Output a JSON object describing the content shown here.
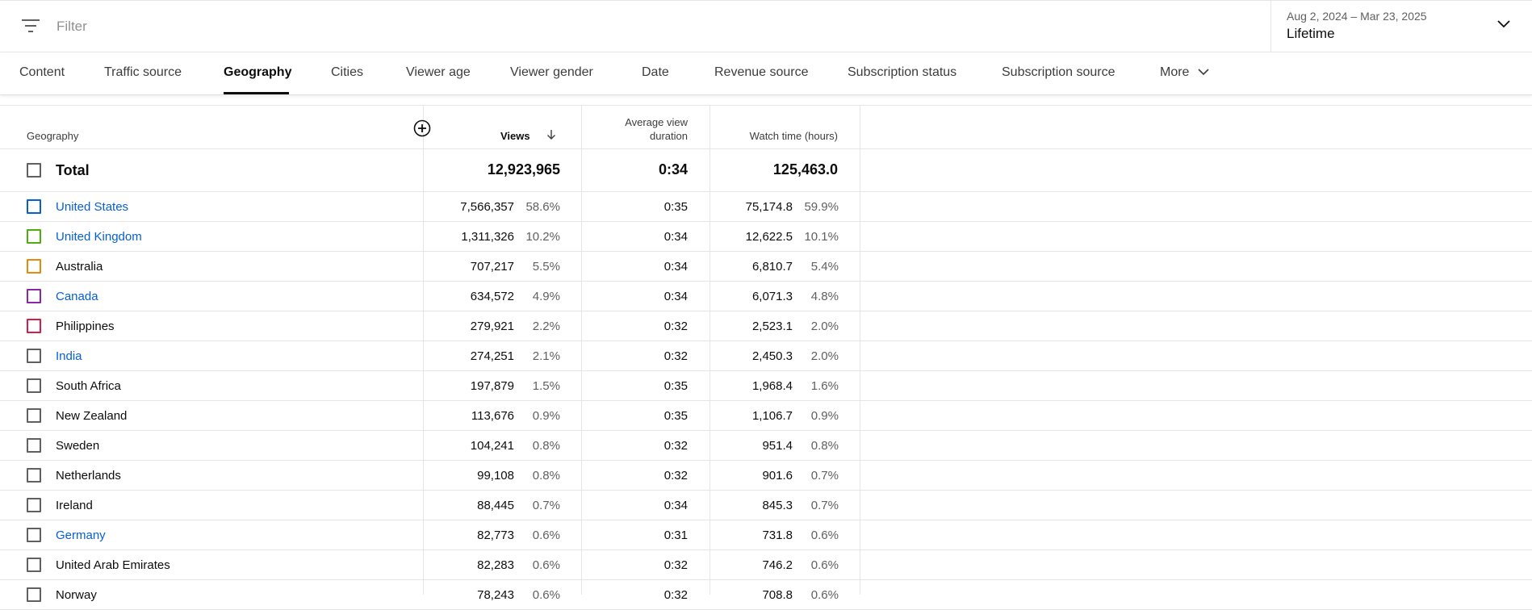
{
  "filter": {
    "placeholder": "Filter"
  },
  "date": {
    "range": "Aug 2, 2024 – Mar 23, 2025",
    "label": "Lifetime"
  },
  "tabs": [
    {
      "label": "Content"
    },
    {
      "label": "Traffic source"
    },
    {
      "label": "Geography",
      "active": true
    },
    {
      "label": "Cities"
    },
    {
      "label": "Viewer age"
    },
    {
      "label": "Viewer gender"
    },
    {
      "label": "Date"
    },
    {
      "label": "Revenue source"
    },
    {
      "label": "Subscription status"
    },
    {
      "label": "Subscription source"
    },
    {
      "label": "More"
    }
  ],
  "table": {
    "headers": {
      "geography": "Geography",
      "views": "Views",
      "avd_line1": "Average view",
      "avd_line2": "duration",
      "watch_time": "Watch time (hours)"
    },
    "total": {
      "label": "Total",
      "views": "12,923,965",
      "avd": "0:34",
      "watch_time": "125,463.0"
    },
    "rows": [
      {
        "country": "United States",
        "link": true,
        "color": "#065fd4",
        "views": "7,566,357",
        "views_pct": "58.6%",
        "avd": "0:35",
        "watch_time": "75,174.8",
        "wt_pct": "59.9%"
      },
      {
        "country": "United Kingdom",
        "link": true,
        "color": "#4caf0b",
        "views": "1,311,326",
        "views_pct": "10.2%",
        "avd": "0:34",
        "watch_time": "12,622.5",
        "wt_pct": "10.1%"
      },
      {
        "country": "Australia",
        "link": false,
        "color": "#e8890c",
        "views": "707,217",
        "views_pct": "5.5%",
        "avd": "0:34",
        "watch_time": "6,810.7",
        "wt_pct": "5.4%"
      },
      {
        "country": "Canada",
        "link": true,
        "color": "#8e24aa",
        "views": "634,572",
        "views_pct": "4.9%",
        "avd": "0:34",
        "watch_time": "6,071.3",
        "wt_pct": "4.8%"
      },
      {
        "country": "Philippines",
        "link": false,
        "color": "#d81b4a",
        "views": "279,921",
        "views_pct": "2.2%",
        "avd": "0:32",
        "watch_time": "2,523.1",
        "wt_pct": "2.0%"
      },
      {
        "country": "India",
        "link": true,
        "color": "#606060",
        "views": "274,251",
        "views_pct": "2.1%",
        "avd": "0:32",
        "watch_time": "2,450.3",
        "wt_pct": "2.0%"
      },
      {
        "country": "South Africa",
        "link": false,
        "color": "#606060",
        "views": "197,879",
        "views_pct": "1.5%",
        "avd": "0:35",
        "watch_time": "1,968.4",
        "wt_pct": "1.6%"
      },
      {
        "country": "New Zealand",
        "link": false,
        "color": "#606060",
        "views": "113,676",
        "views_pct": "0.9%",
        "avd": "0:35",
        "watch_time": "1,106.7",
        "wt_pct": "0.9%"
      },
      {
        "country": "Sweden",
        "link": false,
        "color": "#606060",
        "views": "104,241",
        "views_pct": "0.8%",
        "avd": "0:32",
        "watch_time": "951.4",
        "wt_pct": "0.8%"
      },
      {
        "country": "Netherlands",
        "link": false,
        "color": "#606060",
        "views": "99,108",
        "views_pct": "0.8%",
        "avd": "0:32",
        "watch_time": "901.6",
        "wt_pct": "0.7%"
      },
      {
        "country": "Ireland",
        "link": false,
        "color": "#606060",
        "views": "88,445",
        "views_pct": "0.7%",
        "avd": "0:34",
        "watch_time": "845.3",
        "wt_pct": "0.7%"
      },
      {
        "country": "Germany",
        "link": true,
        "color": "#606060",
        "views": "82,773",
        "views_pct": "0.6%",
        "avd": "0:31",
        "watch_time": "731.8",
        "wt_pct": "0.6%"
      },
      {
        "country": "United Arab Emirates",
        "link": false,
        "color": "#606060",
        "views": "82,283",
        "views_pct": "0.6%",
        "avd": "0:32",
        "watch_time": "746.2",
        "wt_pct": "0.6%"
      },
      {
        "country": "Norway",
        "link": false,
        "color": "#606060",
        "views": "78,243",
        "views_pct": "0.6%",
        "avd": "0:32",
        "watch_time": "708.8",
        "wt_pct": "0.6%"
      }
    ]
  }
}
